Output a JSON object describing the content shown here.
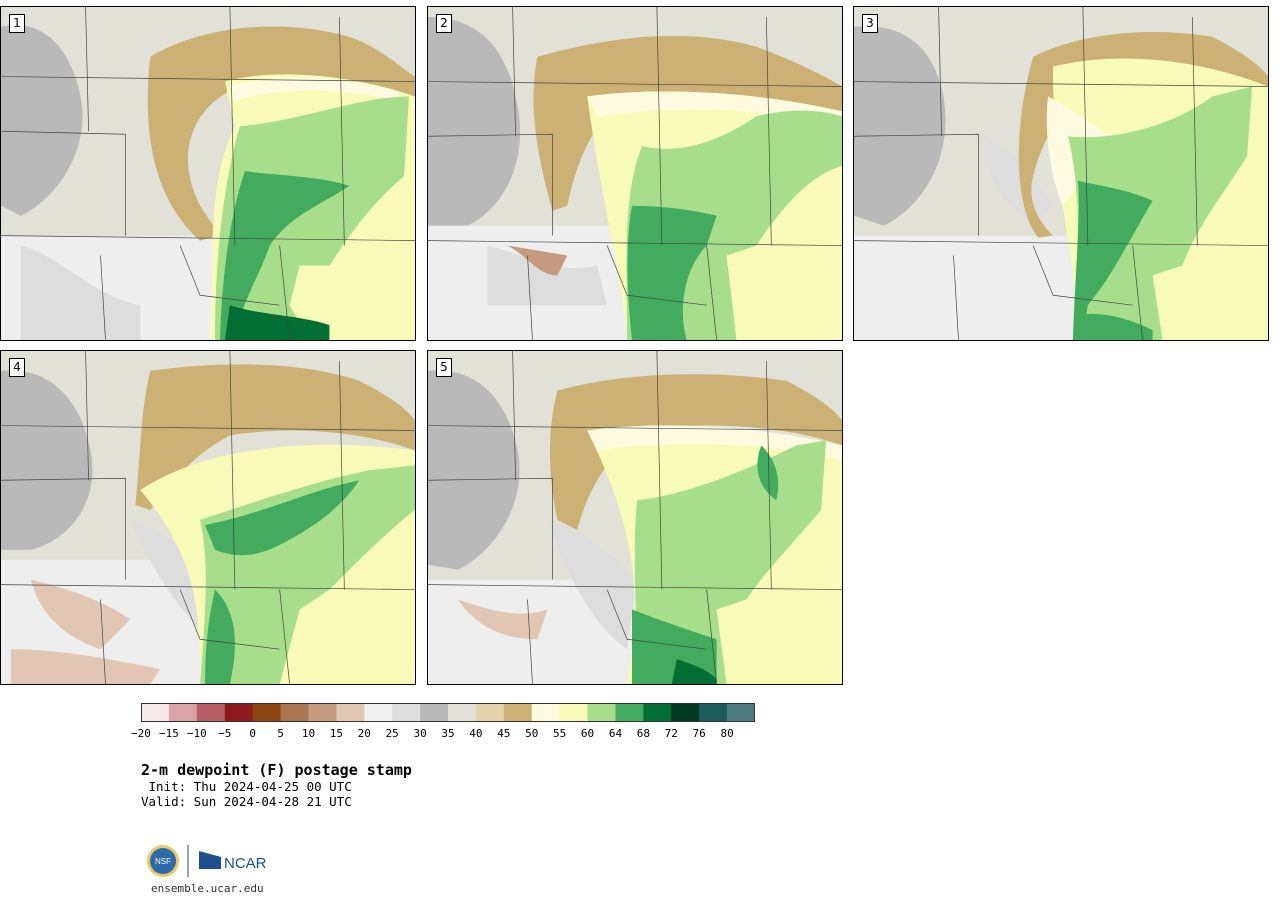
{
  "panels": [
    {
      "label": "1"
    },
    {
      "label": "2"
    },
    {
      "label": "3"
    },
    {
      "label": "4"
    },
    {
      "label": "5"
    }
  ],
  "colorbar": {
    "ticks": [
      "−20",
      "−15",
      "−10",
      "−5",
      "0",
      "5",
      "10",
      "15",
      "20",
      "25",
      "30",
      "35",
      "40",
      "45",
      "50",
      "55",
      "60",
      "64",
      "68",
      "72",
      "76",
      "80"
    ],
    "colors": [
      "#f5e8ea",
      "#d9a3a8",
      "#b76065",
      "#8c1a1f",
      "#8b4511",
      "#aa7550",
      "#c69a7e",
      "#e1c6b3",
      "#f0f0f0",
      "#dddddd",
      "#b9b9b9",
      "#e1e1d8",
      "#e5d3ac",
      "#cbb274",
      "#fffbe1",
      "#f8fbb8",
      "#a7de8c",
      "#42ab5d",
      "#016e34",
      "#003b21",
      "#1d5b5c",
      "#4b7b80"
    ]
  },
  "title": "2-m dewpoint (F) postage stamp",
  "init": " Init: Thu 2024-04-25 00 UTC",
  "valid": "Valid: Sun 2024-04-28 21 UTC",
  "logos": {
    "nsf": "NSF",
    "ncar": "NCAR"
  },
  "site": "ensemble.ucar.edu",
  "colors": {
    "dry_gray": "#b9b9b9",
    "tan": "#cbb274",
    "light_yellow": "#f8fbb8",
    "light_green": "#a7de8c",
    "mid_green": "#42ab5d",
    "dark_green": "#016e34"
  }
}
